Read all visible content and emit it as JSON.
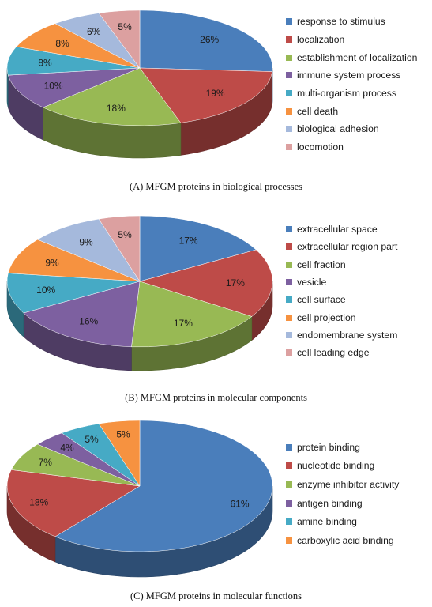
{
  "chart_data": [
    {
      "type": "pie",
      "title": "(A) MFGM proteins in biological processes",
      "legend_position": "right",
      "slices": [
        {
          "label": "response to stimulus",
          "value": 26,
          "display": "26%",
          "color": "#4a7ebb"
        },
        {
          "label": "localization",
          "value": 19,
          "display": "19%",
          "color": "#be4b48"
        },
        {
          "label": "establishment of localization",
          "value": 18,
          "display": "18%",
          "color": "#98b954"
        },
        {
          "label": "immune system process",
          "value": 10,
          "display": "10%",
          "color": "#7d60a0"
        },
        {
          "label": "multi-organism process",
          "value": 8,
          "display": "8%",
          "color": "#46aac5"
        },
        {
          "label": "cell death",
          "value": 8,
          "display": "8%",
          "color": "#f69240"
        },
        {
          "label": "biological adhesion",
          "value": 6,
          "display": "6%",
          "color": "#a5b9dc"
        },
        {
          "label": "locomotion",
          "value": 5,
          "display": "5%",
          "color": "#dca0a0"
        }
      ]
    },
    {
      "type": "pie",
      "title": "(B) MFGM proteins in molecular components",
      "legend_position": "right",
      "slices": [
        {
          "label": "extracellular space",
          "value": 17,
          "display": "17%",
          "color": "#4a7ebb"
        },
        {
          "label": "extracellular region part",
          "value": 17,
          "display": "17%",
          "color": "#be4b48"
        },
        {
          "label": "cell fraction",
          "value": 17,
          "display": "17%",
          "color": "#98b954"
        },
        {
          "label": "vesicle",
          "value": 16,
          "display": "16%",
          "color": "#7d60a0"
        },
        {
          "label": "cell surface",
          "value": 10,
          "display": "10%",
          "color": "#46aac5"
        },
        {
          "label": "cell projection",
          "value": 9,
          "display": "9%",
          "color": "#f69240"
        },
        {
          "label": "endomembrane system",
          "value": 9,
          "display": "9%",
          "color": "#a5b9dc"
        },
        {
          "label": "cell leading edge",
          "value": 5,
          "display": "5%",
          "color": "#dca0a0"
        }
      ]
    },
    {
      "type": "pie",
      "title": "(C) MFGM proteins in molecular functions",
      "legend_position": "right",
      "slices": [
        {
          "label": "protein binding",
          "value": 61,
          "display": "61%",
          "color": "#4a7ebb"
        },
        {
          "label": "nucleotide binding",
          "value": 18,
          "display": "18%",
          "color": "#be4b48"
        },
        {
          "label": "enzyme inhibitor activity",
          "value": 7,
          "display": "7%",
          "color": "#98b954"
        },
        {
          "label": "antigen binding",
          "value": 4,
          "display": "4%",
          "color": "#7d60a0"
        },
        {
          "label": "amine binding",
          "value": 5,
          "display": "5%",
          "color": "#46aac5"
        },
        {
          "label": "carboxylic acid binding",
          "value": 5,
          "display": "5%",
          "color": "#f69240"
        }
      ]
    }
  ]
}
